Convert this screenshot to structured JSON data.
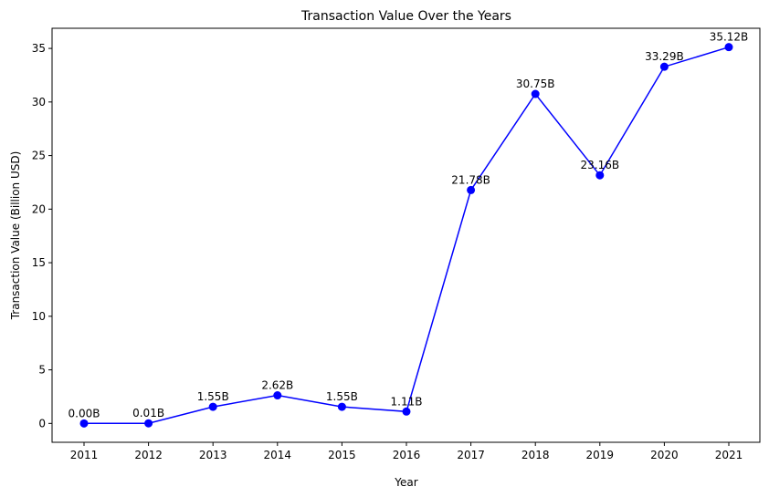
{
  "chart_data": {
    "type": "line",
    "title": "Transaction Value Over the Years",
    "xlabel": "Year",
    "ylabel": "Transaction Value (Billion USD)",
    "categories": [
      "2011",
      "2012",
      "2013",
      "2014",
      "2015",
      "2016",
      "2017",
      "2018",
      "2019",
      "2020",
      "2021"
    ],
    "series": [
      {
        "values": [
          0.0,
          0.01,
          1.55,
          2.62,
          1.55,
          1.11,
          21.78,
          30.75,
          23.16,
          33.29,
          35.12
        ],
        "labels": [
          "0.00B",
          "0.01B",
          "1.55B",
          "2.62B",
          "1.55B",
          "1.11B",
          "21.78B",
          "30.75B",
          "23.16B",
          "33.29B",
          "35.12B"
        ],
        "color": "#0000ff",
        "marker": "circle"
      }
    ],
    "ylim": [
      -1.76,
      36.88
    ],
    "yticks": [
      0,
      5,
      10,
      15,
      20,
      25,
      30,
      35
    ],
    "grid": false,
    "legend": "none"
  }
}
